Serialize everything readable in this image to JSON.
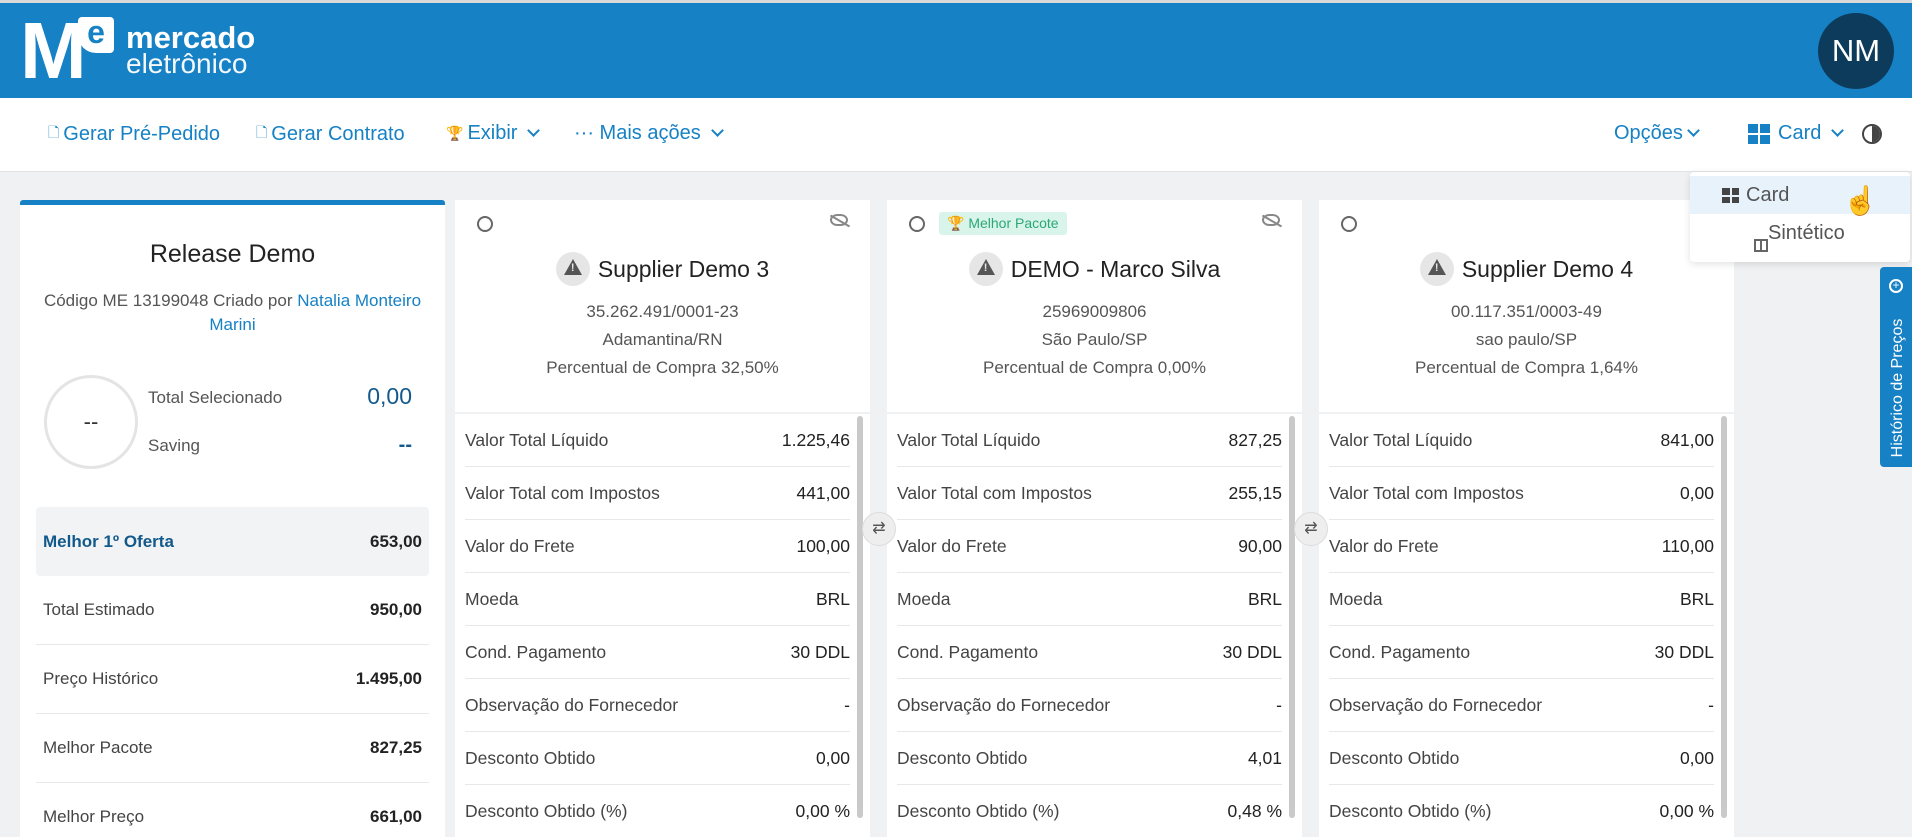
{
  "header": {
    "logo": {
      "line1": "mercado",
      "line2": "eletrônico"
    },
    "avatar_initials": "NM"
  },
  "toolbar": {
    "gerar_pre_pedido": "Gerar Pré-Pedido",
    "gerar_contrato": "Gerar Contrato",
    "exibir": "Exibir",
    "mais_acoes": "··· Mais ações",
    "opcoes": "Opções",
    "view_mode": "Card"
  },
  "view_menu": {
    "items": [
      {
        "label": "Card",
        "icon": "grid-icon",
        "active": true
      },
      {
        "label": "Sintético",
        "icon": "columns-icon",
        "active": false
      }
    ]
  },
  "side_tab": {
    "label": "Histórico de Preços"
  },
  "summary": {
    "title": "Release Demo",
    "code_prefix": "Código ME 13199048 Criado por",
    "creator": "Natalia Monteiro Marini",
    "circle_value": "--",
    "total_selecionado_label": "Total Selecionado",
    "total_selecionado_value": "0,00",
    "saving_label": "Saving",
    "saving_value": "--",
    "rows": [
      {
        "label": "Melhor 1º Oferta",
        "value": "653,00"
      },
      {
        "label": "Total Estimado",
        "value": "950,00"
      },
      {
        "label": "Preço Histórico",
        "value": "1.495,00"
      },
      {
        "label": "Melhor Pacote",
        "value": "827,25"
      },
      {
        "label": "Melhor Preço",
        "value": "661,00"
      }
    ]
  },
  "suppliers": [
    {
      "name": "Supplier Demo 3",
      "badge": "",
      "doc": "35.262.491/0001-23",
      "city": "Adamantina/RN",
      "percent": "Percentual de Compra 32,50%",
      "rows": [
        {
          "label": "Valor Total Líquido",
          "value": "1.225,46"
        },
        {
          "label": "Valor Total com Impostos",
          "value": "441,00"
        },
        {
          "label": "Valor do Frete",
          "value": "100,00"
        },
        {
          "label": "Moeda",
          "value": "BRL"
        },
        {
          "label": "Cond. Pagamento",
          "value": "30 DDL"
        },
        {
          "label": "Observação do Fornecedor",
          "value": "-"
        },
        {
          "label": "Desconto Obtido",
          "value": "0,00"
        },
        {
          "label": "Desconto Obtido (%)",
          "value": "0,00 %"
        }
      ]
    },
    {
      "name": "DEMO - Marco Silva",
      "badge": "Melhor Pacote",
      "doc": "25969009806",
      "city": "São Paulo/SP",
      "percent": "Percentual de Compra 0,00%",
      "rows": [
        {
          "label": "Valor Total Líquido",
          "value": "827,25"
        },
        {
          "label": "Valor Total com Impostos",
          "value": "255,15"
        },
        {
          "label": "Valor do Frete",
          "value": "90,00"
        },
        {
          "label": "Moeda",
          "value": "BRL"
        },
        {
          "label": "Cond. Pagamento",
          "value": "30 DDL"
        },
        {
          "label": "Observação do Fornecedor",
          "value": "-"
        },
        {
          "label": "Desconto Obtido",
          "value": "4,01"
        },
        {
          "label": "Desconto Obtido (%)",
          "value": "0,48 %"
        }
      ]
    },
    {
      "name": "Supplier Demo 4",
      "badge": "",
      "doc": "00.117.351/0003-49",
      "city": "sao paulo/SP",
      "percent": "Percentual de Compra 1,64%",
      "rows": [
        {
          "label": "Valor Total Líquido",
          "value": "841,00"
        },
        {
          "label": "Valor Total com Impostos",
          "value": "0,00"
        },
        {
          "label": "Valor do Frete",
          "value": "110,00"
        },
        {
          "label": "Moeda",
          "value": "BRL"
        },
        {
          "label": "Cond. Pagamento",
          "value": "30 DDL"
        },
        {
          "label": "Observação do Fornecedor",
          "value": "-"
        },
        {
          "label": "Desconto Obtido",
          "value": "0,00"
        },
        {
          "label": "Desconto Obtido (%)",
          "value": "0,00 %"
        }
      ]
    }
  ],
  "colors": {
    "brand": "#1681c4",
    "avatar": "#0d3b5c",
    "badge_bg": "#d9f4ea",
    "badge_text": "#2aa876"
  }
}
